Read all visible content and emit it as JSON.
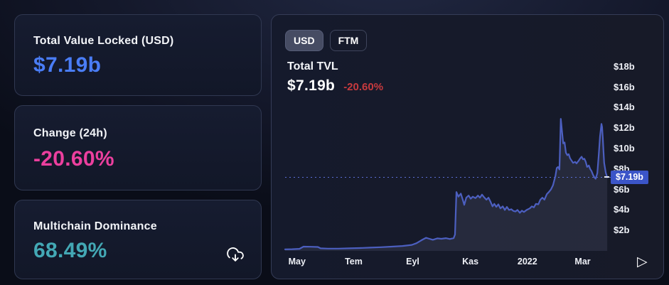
{
  "cards": [
    {
      "label": "Total Value Locked (USD)",
      "value": "$7.19b",
      "color": "#4a7df6"
    },
    {
      "label": "Change (24h)",
      "value": "-20.60%",
      "color": "#ec3f9e"
    },
    {
      "label": "Multichain Dominance",
      "value": "68.49%",
      "color": "#43a8b5"
    }
  ],
  "download_icon": "cloud-download",
  "panel": {
    "toggle": [
      "USD",
      "FTM"
    ],
    "active_currency": "USD",
    "title": "Total TVL",
    "value": "$7.19b",
    "change": "-20.60%",
    "badge": "$7.19b"
  },
  "colors": {
    "accent_blue": "#4a7df6",
    "accent_pink": "#ec3f9e",
    "accent_teal": "#43a8b5",
    "change_red": "#c73a3e",
    "line_blue": "#4c5fc0",
    "area_fill": "rgba(148,158,190,0.13)",
    "dotted_blue": "#5b6fd6",
    "badge_blue": "#3b55c8"
  },
  "chart_data": {
    "type": "area",
    "title": "Total TVL",
    "unit": "USD billions",
    "legend": "none",
    "grid": false,
    "x_axis": {
      "labels": [
        "May",
        "Tem",
        "Eyl",
        "Kas",
        "2022",
        "Mar"
      ],
      "positions": [
        0.035,
        0.201,
        0.374,
        0.543,
        0.71,
        0.872
      ]
    },
    "y_axis": {
      "ticks": [
        2,
        4,
        6,
        8,
        10,
        12,
        14,
        16,
        18
      ],
      "prefix": "$",
      "suffix": "b",
      "range": [
        0,
        19.2
      ]
    },
    "current_value": 7.19,
    "current_label": "$7.19b",
    "points": [
      [
        0.0,
        0.15
      ],
      [
        0.021,
        0.17
      ],
      [
        0.042,
        0.2
      ],
      [
        0.054,
        0.42
      ],
      [
        0.075,
        0.4
      ],
      [
        0.096,
        0.38
      ],
      [
        0.104,
        0.25
      ],
      [
        0.125,
        0.22
      ],
      [
        0.156,
        0.22
      ],
      [
        0.188,
        0.25
      ],
      [
        0.219,
        0.28
      ],
      [
        0.25,
        0.32
      ],
      [
        0.281,
        0.36
      ],
      [
        0.313,
        0.42
      ],
      [
        0.344,
        0.48
      ],
      [
        0.371,
        0.58
      ],
      [
        0.385,
        0.75
      ],
      [
        0.4,
        1.05
      ],
      [
        0.413,
        1.28
      ],
      [
        0.423,
        1.18
      ],
      [
        0.433,
        1.08
      ],
      [
        0.446,
        1.22
      ],
      [
        0.458,
        1.18
      ],
      [
        0.471,
        1.24
      ],
      [
        0.483,
        1.16
      ],
      [
        0.494,
        1.25
      ],
      [
        0.498,
        1.6
      ],
      [
        0.502,
        5.75
      ],
      [
        0.508,
        5.3
      ],
      [
        0.515,
        5.6
      ],
      [
        0.521,
        4.95
      ],
      [
        0.525,
        4.5
      ],
      [
        0.531,
        5.2
      ],
      [
        0.538,
        5.4
      ],
      [
        0.544,
        5.1
      ],
      [
        0.55,
        5.3
      ],
      [
        0.558,
        5.15
      ],
      [
        0.565,
        5.4
      ],
      [
        0.571,
        5.2
      ],
      [
        0.577,
        5.5
      ],
      [
        0.583,
        5.25
      ],
      [
        0.59,
        5.0
      ],
      [
        0.596,
        5.2
      ],
      [
        0.602,
        4.8
      ],
      [
        0.608,
        4.35
      ],
      [
        0.613,
        4.6
      ],
      [
        0.619,
        4.3
      ],
      [
        0.625,
        4.55
      ],
      [
        0.631,
        4.15
      ],
      [
        0.638,
        4.35
      ],
      [
        0.644,
        4.0
      ],
      [
        0.65,
        4.3
      ],
      [
        0.656,
        4.0
      ],
      [
        0.663,
        4.07
      ],
      [
        0.669,
        3.9
      ],
      [
        0.675,
        3.85
      ],
      [
        0.681,
        4.0
      ],
      [
        0.688,
        3.72
      ],
      [
        0.694,
        3.93
      ],
      [
        0.7,
        3.8
      ],
      [
        0.708,
        4.0
      ],
      [
        0.717,
        4.15
      ],
      [
        0.723,
        4.35
      ],
      [
        0.729,
        4.25
      ],
      [
        0.735,
        4.6
      ],
      [
        0.742,
        4.55
      ],
      [
        0.748,
        5.0
      ],
      [
        0.754,
        5.2
      ],
      [
        0.76,
        5.0
      ],
      [
        0.767,
        5.55
      ],
      [
        0.773,
        5.75
      ],
      [
        0.779,
        6.0
      ],
      [
        0.785,
        6.4
      ],
      [
        0.792,
        7.3
      ],
      [
        0.796,
        8.1
      ],
      [
        0.8,
        8.2
      ],
      [
        0.804,
        7.95
      ],
      [
        0.806,
        10.5
      ],
      [
        0.808,
        12.9
      ],
      [
        0.813,
        11.2
      ],
      [
        0.815,
        10.5
      ],
      [
        0.819,
        10.6
      ],
      [
        0.823,
        9.6
      ],
      [
        0.827,
        9.35
      ],
      [
        0.831,
        9.45
      ],
      [
        0.835,
        9.05
      ],
      [
        0.84,
        8.8
      ],
      [
        0.844,
        8.6
      ],
      [
        0.85,
        8.7
      ],
      [
        0.854,
        8.55
      ],
      [
        0.86,
        8.8
      ],
      [
        0.865,
        9.05
      ],
      [
        0.869,
        9.2
      ],
      [
        0.873,
        8.95
      ],
      [
        0.877,
        9.0
      ],
      [
        0.881,
        8.7
      ],
      [
        0.885,
        8.2
      ],
      [
        0.89,
        8.35
      ],
      [
        0.894,
        8.0
      ],
      [
        0.898,
        7.8
      ],
      [
        0.902,
        7.45
      ],
      [
        0.906,
        7.2
      ],
      [
        0.91,
        7.05
      ],
      [
        0.915,
        7.6
      ],
      [
        0.919,
        9.3
      ],
      [
        0.923,
        11.2
      ],
      [
        0.927,
        12.4
      ],
      [
        0.929,
        12.1
      ],
      [
        0.931,
        11.0
      ],
      [
        0.933,
        9.8
      ],
      [
        0.935,
        8.6
      ],
      [
        0.938,
        8.0
      ],
      [
        0.94,
        7.6
      ],
      [
        0.944,
        7.19
      ]
    ]
  }
}
